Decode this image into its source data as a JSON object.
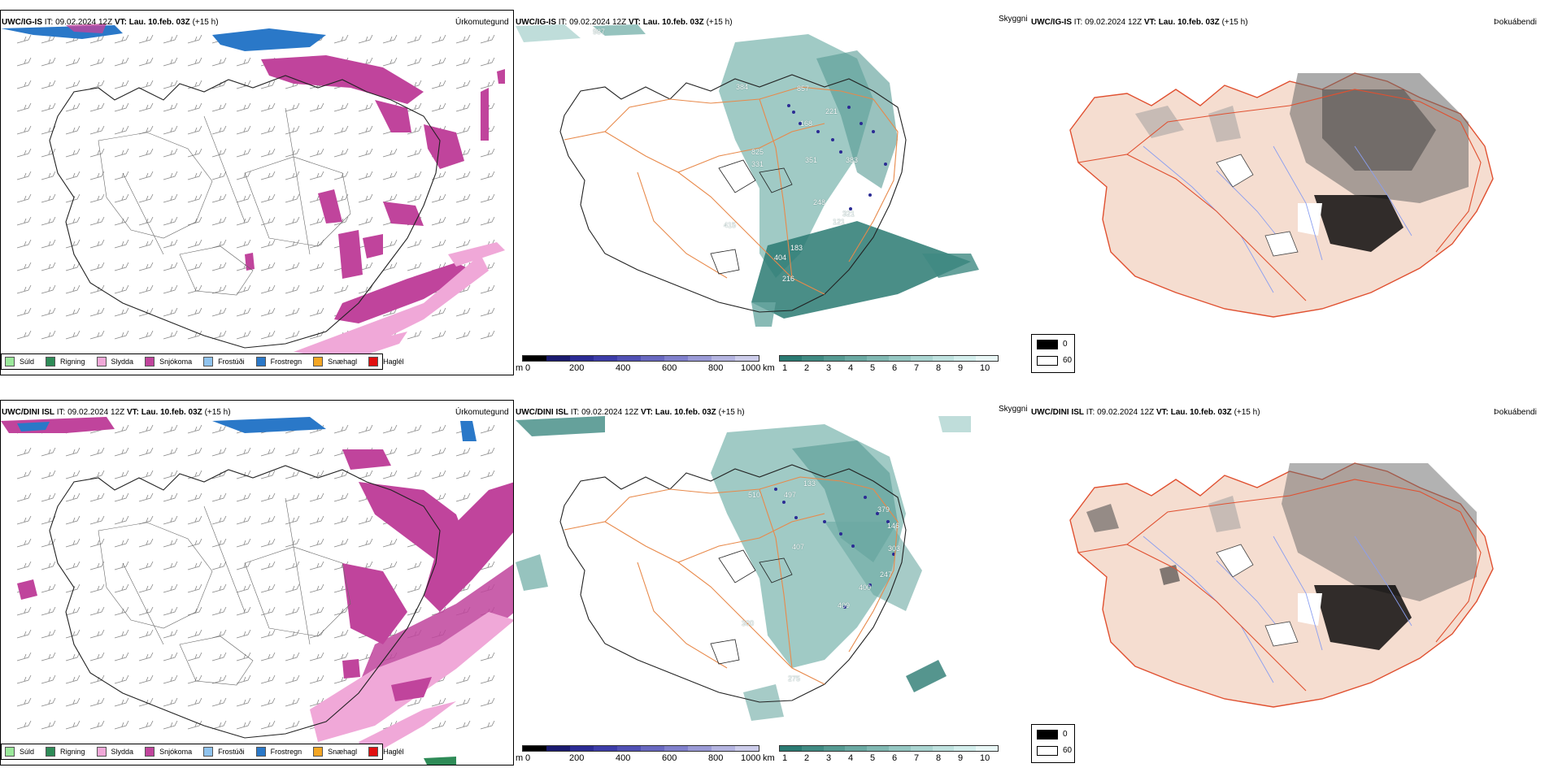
{
  "rows": [
    {
      "model": "UWC/IG-IS",
      "it_label": "IT:",
      "it_value": "09.02.2024 12Z",
      "vt_label": "VT:",
      "vt_value": "Lau. 10.feb. 03Z",
      "lead": "(+15 h)"
    },
    {
      "model": "UWC/DINI ISL",
      "it_label": "IT:",
      "it_value": "09.02.2024 12Z",
      "vt_label": "VT:",
      "vt_value": "Lau. 10.feb. 03Z",
      "lead": "(+15 h)"
    }
  ],
  "panel_titles": {
    "precip": "Úrkomutegund",
    "sky": "Skyggni",
    "fog": "Þokuábendi"
  },
  "precip_legend": [
    {
      "label": "Súld",
      "color": "#9be89b"
    },
    {
      "label": "Rigning",
      "color": "#2e8b57"
    },
    {
      "label": "Slydda",
      "color": "#f0a8d8"
    },
    {
      "label": "Snjókoma",
      "color": "#c0449c"
    },
    {
      "label": "Frostúði",
      "color": "#8fc3ee"
    },
    {
      "label": "Frostregn",
      "color": "#2a78c8"
    },
    {
      "label": "Snæhagl",
      "color": "#f5a623"
    },
    {
      "label": "Haglél",
      "color": "#e01010"
    }
  ],
  "ceiling_bar": {
    "unit": "m",
    "ticks": [
      "0",
      "200",
      "400",
      "600",
      "800",
      "1000"
    ],
    "colors": [
      "#000000",
      "#1a1a6e",
      "#2b2b94",
      "#3c3ca8",
      "#5050b4",
      "#6868c0",
      "#8080cc",
      "#9a9ad6",
      "#b4b4e0",
      "#ccccea"
    ]
  },
  "vis_bar": {
    "unit": "km",
    "ticks": [
      "1",
      "2",
      "3",
      "4",
      "5",
      "6",
      "7",
      "8",
      "9",
      "10"
    ],
    "colors": [
      "#2a7a72",
      "#3f8a82",
      "#559a92",
      "#6aa9a2",
      "#80b8b2",
      "#95c7c2",
      "#aad5d1",
      "#bfe2df",
      "#d3eeec",
      "#e8f7f6"
    ]
  },
  "cloud_legend": {
    "dark_label": "0",
    "light_label": "60"
  },
  "station_labels": {
    "top": [
      "987",
      "384",
      "857",
      "221",
      "168",
      "825",
      "331",
      "351",
      "383",
      "248",
      "121",
      "321",
      "415",
      "404",
      "183",
      "216"
    ],
    "bottom": [
      "133",
      "510",
      "497",
      "379",
      "146",
      "407",
      "303",
      "247",
      "400",
      "300",
      "409",
      "275"
    ]
  }
}
